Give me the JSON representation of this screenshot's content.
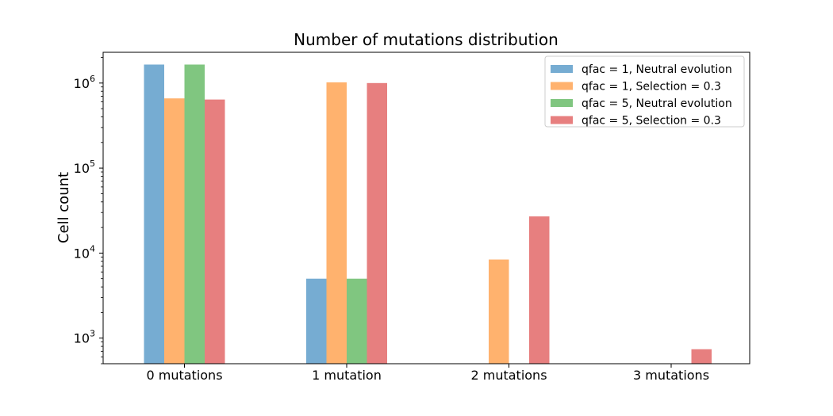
{
  "chart_data": {
    "type": "bar",
    "title": "Number of mutations distribution",
    "xlabel": "",
    "ylabel": "Cell count",
    "yscale": "log",
    "ylim": [
      500,
      2300000
    ],
    "yticks": [
      {
        "value": 1000,
        "base": "10",
        "exp": "3"
      },
      {
        "value": 10000,
        "base": "10",
        "exp": "4"
      },
      {
        "value": 100000,
        "base": "10",
        "exp": "5"
      },
      {
        "value": 1000000,
        "base": "10",
        "exp": "6"
      }
    ],
    "categories": [
      "0 mutations",
      "1 mutation",
      "2 mutations",
      "3 mutations"
    ],
    "series": [
      {
        "name": "qfac = 1, Neutral evolution",
        "color": "#76acd2",
        "values": [
          1650000,
          5000,
          null,
          null
        ]
      },
      {
        "name": "qfac = 1, Selection = 0.3",
        "color": "#ffb26e",
        "values": [
          660000,
          1020000,
          8400,
          null
        ]
      },
      {
        "name": "qfac = 5, Neutral evolution",
        "color": "#80c680",
        "values": [
          1650000,
          5000,
          null,
          null
        ]
      },
      {
        "name": "qfac = 5, Selection = 0.3",
        "color": "#e77f7f",
        "values": [
          640000,
          1000000,
          27000,
          740
        ]
      }
    ],
    "grid": false,
    "legend": "top-right"
  }
}
